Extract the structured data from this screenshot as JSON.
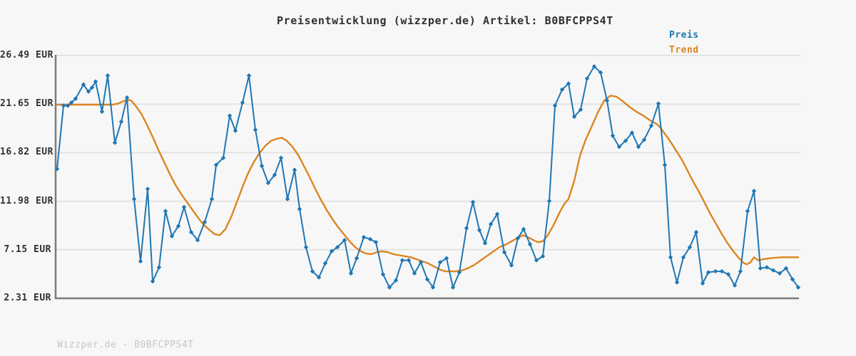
{
  "page": {
    "background": "#f7f7f7"
  },
  "header": {
    "title": "Preisentwicklung (wizzper.de) Artikel: B0BFCPPS4T"
  },
  "legend": {
    "items": [
      {
        "label": "Preis",
        "color": "#1f77b4"
      },
      {
        "label": "Trend",
        "color": "#dd8420"
      }
    ]
  },
  "footer": {
    "watermark": "Wizzper.de - B0BFCPPS4T"
  },
  "chart_data": {
    "type": "line",
    "title": "Preisentwicklung (wizzper.de) Artikel: B0BFCPPS4T",
    "currency": "EUR",
    "xlabel": "",
    "ylabel": "",
    "x_axis_labels": "none (time axis unlabeled)",
    "yticks": [
      26.49,
      21.65,
      16.82,
      11.98,
      7.15,
      2.31
    ],
    "ytick_suffix": " EUR",
    "ylim": [
      2.31,
      26.49
    ],
    "grid": true,
    "legend_position": "top-right",
    "series": [
      {
        "name": "Preis",
        "color": "#1f77b4",
        "marker": "diamond",
        "points": [
          [
            0,
            15.2
          ],
          [
            9,
            21.5
          ],
          [
            15,
            21.5
          ],
          [
            20,
            21.8
          ],
          [
            26,
            22.2
          ],
          [
            37,
            23.6
          ],
          [
            44,
            22.9
          ],
          [
            49,
            23.3
          ],
          [
            54,
            23.9
          ],
          [
            63,
            20.9
          ],
          [
            71,
            24.5
          ],
          [
            81,
            17.8
          ],
          [
            90,
            19.9
          ],
          [
            98,
            22.3
          ],
          [
            108,
            12.2
          ],
          [
            117,
            6.0
          ],
          [
            127,
            13.2
          ],
          [
            134,
            4.0
          ],
          [
            143,
            5.4
          ],
          [
            152,
            11.0
          ],
          [
            161,
            8.5
          ],
          [
            170,
            9.5
          ],
          [
            178,
            11.4
          ],
          [
            188,
            8.9
          ],
          [
            197,
            8.1
          ],
          [
            207,
            9.9
          ],
          [
            217,
            12.2
          ],
          [
            223,
            15.6
          ],
          [
            233,
            16.3
          ],
          [
            242,
            20.5
          ],
          [
            250,
            19.0
          ],
          [
            260,
            21.8
          ],
          [
            269,
            24.5
          ],
          [
            278,
            19.1
          ],
          [
            287,
            15.5
          ],
          [
            296,
            13.8
          ],
          [
            305,
            14.6
          ],
          [
            314,
            16.3
          ],
          [
            323,
            12.2
          ],
          [
            333,
            15.1
          ],
          [
            340,
            11.2
          ],
          [
            349,
            7.4
          ],
          [
            358,
            5.0
          ],
          [
            367,
            4.4
          ],
          [
            376,
            5.8
          ],
          [
            385,
            7.0
          ],
          [
            393,
            7.4
          ],
          [
            403,
            8.1
          ],
          [
            412,
            4.8
          ],
          [
            420,
            6.3
          ],
          [
            430,
            8.4
          ],
          [
            439,
            8.2
          ],
          [
            447,
            7.9
          ],
          [
            457,
            4.7
          ],
          [
            466,
            3.4
          ],
          [
            475,
            4.1
          ],
          [
            484,
            6.1
          ],
          [
            493,
            6.1
          ],
          [
            501,
            4.8
          ],
          [
            510,
            5.9
          ],
          [
            519,
            4.2
          ],
          [
            527,
            3.4
          ],
          [
            537,
            5.9
          ],
          [
            546,
            6.3
          ],
          [
            555,
            3.4
          ],
          [
            564,
            4.9
          ],
          [
            574,
            9.3
          ],
          [
            583,
            11.9
          ],
          [
            592,
            9.1
          ],
          [
            600,
            7.8
          ],
          [
            608,
            9.7
          ],
          [
            617,
            10.7
          ],
          [
            627,
            6.9
          ],
          [
            637,
            5.6
          ],
          [
            646,
            8.3
          ],
          [
            654,
            9.2
          ],
          [
            663,
            7.7
          ],
          [
            672,
            6.1
          ],
          [
            681,
            6.5
          ],
          [
            690,
            12.0
          ],
          [
            698,
            21.5
          ],
          [
            708,
            23.1
          ],
          [
            717,
            23.7
          ],
          [
            725,
            20.4
          ],
          [
            734,
            21.1
          ],
          [
            743,
            24.2
          ],
          [
            753,
            25.4
          ],
          [
            762,
            24.8
          ],
          [
            771,
            22.0
          ],
          [
            779,
            18.5
          ],
          [
            788,
            17.4
          ],
          [
            797,
            18.0
          ],
          [
            806,
            18.8
          ],
          [
            815,
            17.4
          ],
          [
            823,
            18.1
          ],
          [
            833,
            19.5
          ],
          [
            843,
            21.7
          ],
          [
            852,
            15.6
          ],
          [
            860,
            6.4
          ],
          [
            869,
            3.9
          ],
          [
            878,
            6.4
          ],
          [
            887,
            7.4
          ],
          [
            896,
            8.9
          ],
          [
            905,
            3.8
          ],
          [
            913,
            4.9
          ],
          [
            923,
            5.0
          ],
          [
            932,
            5.0
          ],
          [
            941,
            4.7
          ],
          [
            950,
            3.6
          ],
          [
            958,
            5.0
          ],
          [
            968,
            11.0
          ],
          [
            977,
            13.0
          ],
          [
            986,
            5.3
          ],
          [
            995,
            5.4
          ],
          [
            1004,
            5.1
          ],
          [
            1013,
            4.8
          ],
          [
            1022,
            5.3
          ],
          [
            1031,
            4.2
          ],
          [
            1039,
            3.4
          ]
        ]
      },
      {
        "name": "Trend",
        "color": "#dd8420",
        "marker": "none",
        "points": [
          [
            0,
            21.6
          ],
          [
            30,
            21.6
          ],
          [
            60,
            21.6
          ],
          [
            78,
            21.6
          ],
          [
            85,
            21.7
          ],
          [
            92,
            21.9
          ],
          [
            98,
            22.1
          ],
          [
            104,
            22.0
          ],
          [
            110,
            21.5
          ],
          [
            118,
            20.7
          ],
          [
            126,
            19.6
          ],
          [
            134,
            18.4
          ],
          [
            142,
            17.1
          ],
          [
            150,
            15.9
          ],
          [
            158,
            14.7
          ],
          [
            166,
            13.6
          ],
          [
            174,
            12.7
          ],
          [
            182,
            11.9
          ],
          [
            190,
            11.1
          ],
          [
            198,
            10.3
          ],
          [
            206,
            9.6
          ],
          [
            214,
            9.1
          ],
          [
            221,
            8.7
          ],
          [
            228,
            8.6
          ],
          [
            236,
            9.2
          ],
          [
            244,
            10.4
          ],
          [
            252,
            11.9
          ],
          [
            260,
            13.4
          ],
          [
            268,
            14.8
          ],
          [
            276,
            15.9
          ],
          [
            284,
            16.8
          ],
          [
            292,
            17.5
          ],
          [
            300,
            18.0
          ],
          [
            308,
            18.2
          ],
          [
            315,
            18.3
          ],
          [
            322,
            18.0
          ],
          [
            330,
            17.4
          ],
          [
            338,
            16.6
          ],
          [
            346,
            15.5
          ],
          [
            354,
            14.4
          ],
          [
            362,
            13.2
          ],
          [
            370,
            12.1
          ],
          [
            378,
            11.1
          ],
          [
            386,
            10.2
          ],
          [
            394,
            9.4
          ],
          [
            402,
            8.7
          ],
          [
            410,
            8.0
          ],
          [
            418,
            7.4
          ],
          [
            426,
            7.0
          ],
          [
            432,
            6.8
          ],
          [
            440,
            6.7
          ],
          [
            448,
            6.9
          ],
          [
            456,
            7.0
          ],
          [
            464,
            6.9
          ],
          [
            472,
            6.7
          ],
          [
            480,
            6.6
          ],
          [
            488,
            6.5
          ],
          [
            496,
            6.4
          ],
          [
            504,
            6.2
          ],
          [
            512,
            6.0
          ],
          [
            520,
            5.8
          ],
          [
            528,
            5.5
          ],
          [
            536,
            5.2
          ],
          [
            544,
            5.0
          ],
          [
            552,
            5.0
          ],
          [
            560,
            5.0
          ],
          [
            568,
            5.1
          ],
          [
            576,
            5.3
          ],
          [
            584,
            5.6
          ],
          [
            592,
            6.0
          ],
          [
            600,
            6.4
          ],
          [
            610,
            6.9
          ],
          [
            620,
            7.4
          ],
          [
            630,
            7.7
          ],
          [
            640,
            8.1
          ],
          [
            648,
            8.4
          ],
          [
            653,
            8.6
          ],
          [
            660,
            8.4
          ],
          [
            668,
            8.1
          ],
          [
            674,
            7.9
          ],
          [
            681,
            8.0
          ],
          [
            688,
            8.6
          ],
          [
            696,
            9.6
          ],
          [
            704,
            10.8
          ],
          [
            711,
            11.7
          ],
          [
            717,
            12.2
          ],
          [
            725,
            14.0
          ],
          [
            733,
            16.5
          ],
          [
            741,
            18.1
          ],
          [
            750,
            19.5
          ],
          [
            758,
            20.8
          ],
          [
            767,
            22.0
          ],
          [
            776,
            22.5
          ],
          [
            784,
            22.4
          ],
          [
            792,
            22.0
          ],
          [
            802,
            21.4
          ],
          [
            812,
            20.9
          ],
          [
            822,
            20.5
          ],
          [
            832,
            20.0
          ],
          [
            840,
            19.7
          ],
          [
            846,
            19.3
          ],
          [
            852,
            18.7
          ],
          [
            860,
            17.9
          ],
          [
            868,
            17.0
          ],
          [
            876,
            16.1
          ],
          [
            884,
            15.0
          ],
          [
            892,
            13.9
          ],
          [
            900,
            12.9
          ],
          [
            908,
            11.8
          ],
          [
            916,
            10.7
          ],
          [
            924,
            9.7
          ],
          [
            932,
            8.7
          ],
          [
            940,
            7.8
          ],
          [
            948,
            7.0
          ],
          [
            956,
            6.3
          ],
          [
            963,
            5.8
          ],
          [
            967,
            5.7
          ],
          [
            972,
            5.9
          ],
          [
            977,
            6.4
          ],
          [
            983,
            6.1
          ],
          [
            990,
            6.2
          ],
          [
            1000,
            6.3
          ],
          [
            1015,
            6.4
          ],
          [
            1039,
            6.4
          ]
        ]
      }
    ]
  }
}
